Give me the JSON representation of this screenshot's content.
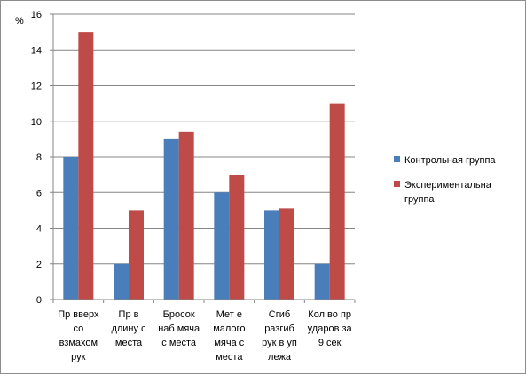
{
  "chart_data": {
    "type": "bar",
    "ylabel": "%",
    "ylim": [
      0,
      16
    ],
    "ystep": 2,
    "grid": true,
    "legend_position": "right",
    "categories": [
      [
        "Пр вверх",
        "со",
        "взмахом",
        "рук"
      ],
      [
        "Пр в",
        "длину с",
        "места"
      ],
      [
        "Бросок",
        "наб мяча",
        "с места"
      ],
      [
        "Мет е",
        "малого",
        "мяча с",
        "места"
      ],
      [
        "Сгиб",
        "разгиб",
        "рук в уп",
        "лежа"
      ],
      [
        "Кол во пр",
        "ударов за",
        "9 сек"
      ]
    ],
    "series": [
      {
        "name": [
          "Контрольная группа"
        ],
        "color": "#4a7ebb",
        "values": [
          8,
          2,
          9,
          6,
          5,
          2
        ]
      },
      {
        "name": [
          "Экспериментальна",
          "группа"
        ],
        "color": "#be4b48",
        "values": [
          15,
          5,
          9.4,
          7,
          5.1,
          11
        ]
      }
    ]
  }
}
